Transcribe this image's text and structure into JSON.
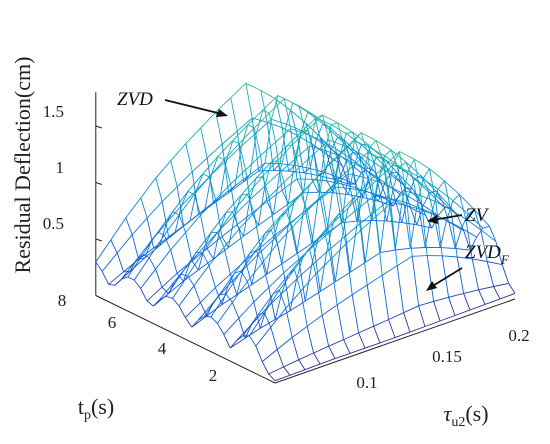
{
  "chart_data": {
    "type": "surface3d",
    "zlabel": "Residual Deflection(cm)",
    "xlabel_main": "t",
    "xlabel_sub": "p",
    "xlabel_suffix": "(s)",
    "ylabel_main": "τ",
    "ylabel_sub": "u2",
    "ylabel_suffix": "(s)",
    "tp_ticks": [
      "2",
      "4",
      "6",
      "8"
    ],
    "tau_ticks": [
      "0.1",
      "0.15",
      "0.2"
    ],
    "z_ticks": [
      "0.5",
      "1",
      "1.5"
    ],
    "xlim": [
      1,
      8
    ],
    "ylim": [
      0.06,
      0.22
    ],
    "zlim": [
      0,
      1.8
    ],
    "grid": false,
    "colormap": "parula",
    "series": [
      {
        "name": "ZVD",
        "tau_u2": [
          0.06,
          0.08,
          0.1,
          0.12,
          0.14,
          0.16,
          0.18,
          0.2,
          0.22
        ],
        "peak_deflection": [
          0.3,
          0.62,
          0.9,
          1.13,
          1.33,
          1.5,
          1.63,
          1.73,
          1.8
        ]
      },
      {
        "name": "ZV",
        "tau_u2": [
          0.06,
          0.08,
          0.1,
          0.12,
          0.14,
          0.16,
          0.18,
          0.2,
          0.22
        ],
        "min_deflection": [
          0.1,
          0.18,
          0.24,
          0.32,
          0.4,
          0.48,
          0.55,
          0.62,
          0.7
        ]
      },
      {
        "name": "ZVD_F",
        "tau_u2": [
          0.06,
          0.1,
          0.14,
          0.18,
          0.22
        ],
        "deflection": [
          0.02,
          0.03,
          0.03,
          0.04,
          0.05
        ]
      }
    ],
    "annotations": [
      {
        "main": "ZVD",
        "sub": ""
      },
      {
        "main": "ZV",
        "sub": ""
      },
      {
        "main": "ZVD",
        "sub": "F"
      }
    ]
  }
}
